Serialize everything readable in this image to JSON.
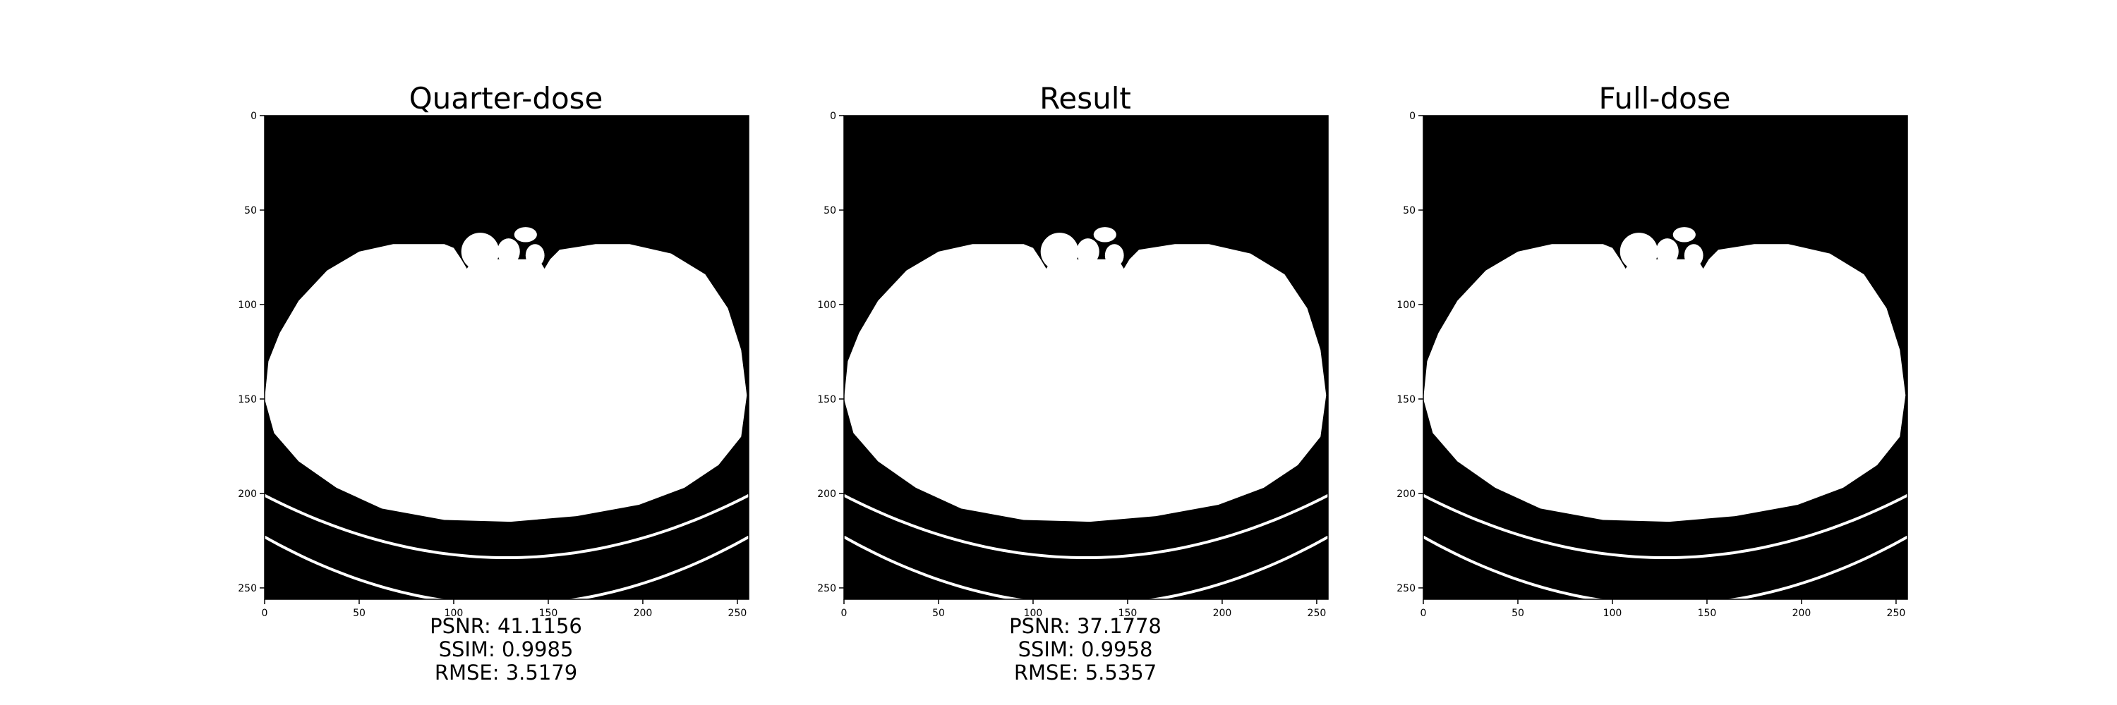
{
  "chart_data": [
    {
      "type": "heatmap",
      "title": "Quarter-dose",
      "x_ticks": [
        0,
        50,
        100,
        150,
        200,
        250
      ],
      "y_ticks": [
        0,
        50,
        100,
        150,
        200,
        250
      ],
      "xlim": [
        0,
        256
      ],
      "ylim": [
        256,
        0
      ],
      "colormap": "gray",
      "metrics": {
        "psnr": "PSNR: 41.1156",
        "ssim": "SSIM: 0.9985",
        "rmse": "RMSE: 3.5179"
      }
    },
    {
      "type": "heatmap",
      "title": "Result",
      "x_ticks": [
        0,
        50,
        100,
        150,
        200,
        250
      ],
      "y_ticks": [
        0,
        50,
        100,
        150,
        200,
        250
      ],
      "xlim": [
        0,
        256
      ],
      "ylim": [
        256,
        0
      ],
      "colormap": "gray",
      "metrics": {
        "psnr": "PSNR: 37.1778",
        "ssim": "SSIM: 0.9958",
        "rmse": "RMSE: 5.5357"
      }
    },
    {
      "type": "heatmap",
      "title": "Full-dose",
      "x_ticks": [
        0,
        50,
        100,
        150,
        200,
        250
      ],
      "y_ticks": [
        0,
        50,
        100,
        150,
        200,
        250
      ],
      "xlim": [
        0,
        256
      ],
      "ylim": [
        256,
        0
      ],
      "colormap": "gray"
    }
  ],
  "colors": {
    "background": "#000000",
    "foreground": "#ffffff"
  }
}
